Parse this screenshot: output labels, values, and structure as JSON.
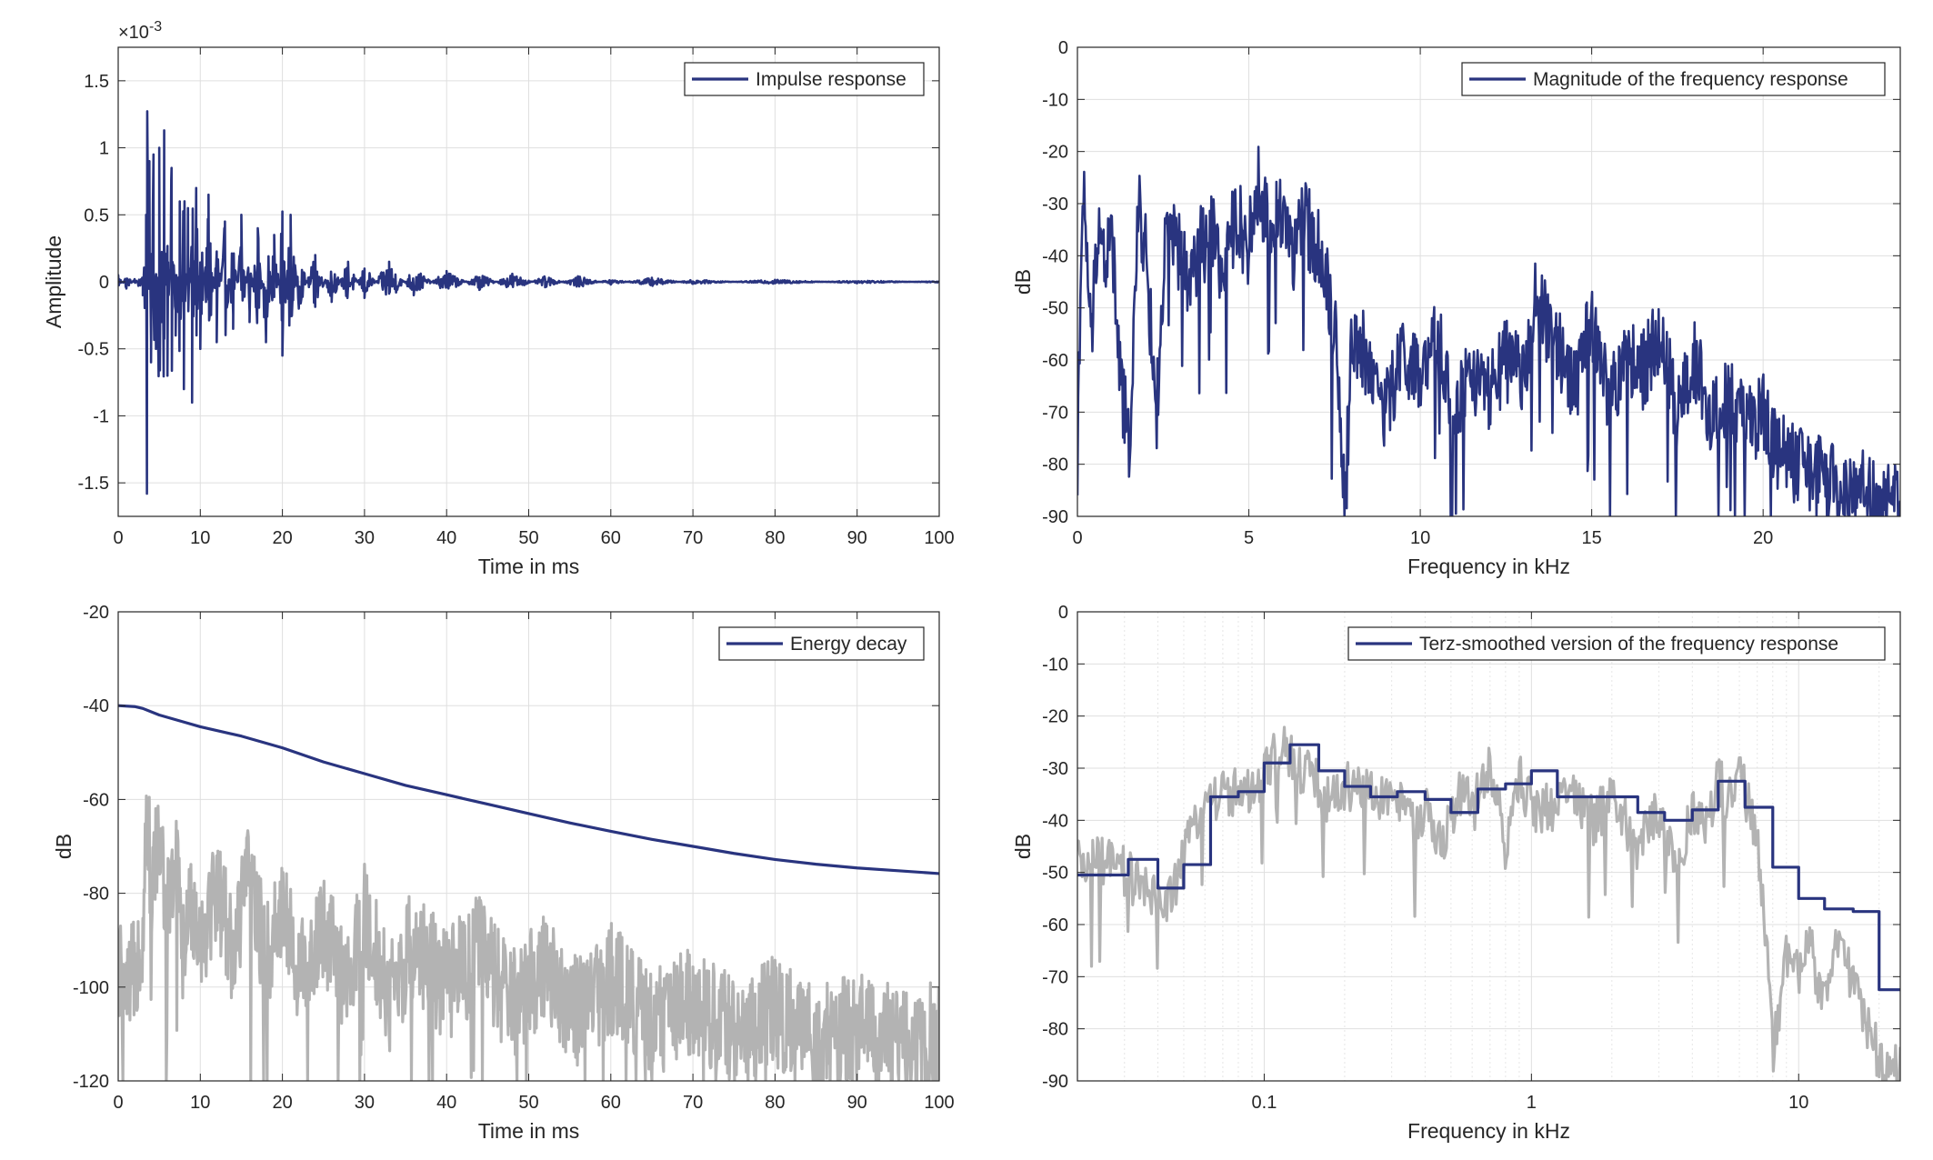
{
  "chart_data": [
    {
      "id": "impulse",
      "type": "line",
      "xlabel": "Time in ms",
      "ylabel": "Amplitude",
      "exponent_label": "×10",
      "exponent_power": "-3",
      "xlim": [
        0,
        100
      ],
      "ylim": [
        -1.75,
        1.75
      ],
      "xticks": [
        0,
        10,
        20,
        30,
        40,
        50,
        60,
        70,
        80,
        90,
        100
      ],
      "xtick_labels": [
        "0",
        "10",
        "20",
        "30",
        "40",
        "50",
        "60",
        "70",
        "80",
        "90",
        "100"
      ],
      "yticks": [
        -1.5,
        -1,
        -0.5,
        0,
        0.5,
        1,
        1.5
      ],
      "ytick_labels": [
        "-1.5",
        "-1",
        "-0.5",
        "0",
        "0.5",
        "1",
        "1.5"
      ],
      "grid": true,
      "legend_position": "top-right",
      "series": [
        {
          "name": "Impulse response",
          "color": "#29347f",
          "x": [
            0,
            1,
            2,
            3,
            3.4,
            3.5,
            3.8,
            4,
            4.3,
            4.6,
            5,
            5.3,
            5.6,
            6,
            6.5,
            7,
            7.5,
            8,
            8.5,
            9,
            9.5,
            10,
            11,
            12,
            13,
            14,
            15,
            16,
            17,
            18,
            19,
            20,
            21,
            22,
            24,
            26,
            28,
            30,
            33,
            36,
            40,
            44,
            48,
            52,
            56,
            60,
            65,
            70,
            80,
            90,
            100
          ],
          "y": [
            0.05,
            -0.05,
            0.02,
            -0.1,
            0.5,
            -1.58,
            0.9,
            -0.6,
            0.95,
            -0.5,
            1.0,
            -0.3,
            1.13,
            -0.7,
            0.85,
            -0.4,
            0.6,
            -0.8,
            0.55,
            -0.9,
            0.7,
            -0.5,
            0.65,
            -0.45,
            0.45,
            -0.35,
            0.5,
            -0.3,
            0.4,
            -0.45,
            0.35,
            -0.55,
            0.5,
            -0.2,
            0.2,
            -0.15,
            0.15,
            -0.12,
            0.15,
            -0.1,
            0.08,
            -0.06,
            0.06,
            -0.04,
            0.04,
            -0.02,
            0.03,
            -0.015,
            0.015,
            -0.01,
            0.005
          ]
        }
      ]
    },
    {
      "id": "magnitude",
      "type": "line",
      "xlabel": "Frequency in kHz",
      "ylabel": "dB",
      "xlim": [
        0,
        24
      ],
      "ylim": [
        -90,
        0
      ],
      "xticks": [
        0,
        5,
        10,
        15,
        20
      ],
      "xtick_labels": [
        "0",
        "5",
        "10",
        "15",
        "20"
      ],
      "yticks": [
        0,
        -10,
        -20,
        -30,
        -40,
        -50,
        -60,
        -70,
        -80,
        -90
      ],
      "ytick_labels": [
        "0",
        "-10",
        "-20",
        "-30",
        "-40",
        "-50",
        "-60",
        "-70",
        "-80",
        "-90"
      ],
      "grid": true,
      "legend_position": "top-right",
      "series": [
        {
          "name": "Magnitude of the frequency response",
          "color": "#29347f",
          "x": [
            0,
            0.2,
            0.4,
            0.6,
            0.8,
            1,
            1.2,
            1.5,
            1.8,
            2,
            2.3,
            2.6,
            3,
            3.3,
            3.6,
            4,
            4.3,
            4.6,
            5,
            5.3,
            5.6,
            6,
            6.3,
            6.6,
            7,
            7.3,
            7.6,
            7.8,
            8,
            8.5,
            9,
            9.5,
            10,
            10.5,
            11,
            11.5,
            12,
            12.5,
            13,
            13.3,
            13.6,
            14,
            14.5,
            15,
            15.5,
            16,
            16.5,
            17,
            17.5,
            18,
            18.5,
            19,
            19.5,
            20,
            20.5,
            21,
            21.5,
            22,
            22.5,
            23,
            23.5,
            24
          ],
          "y": [
            -66,
            -28,
            -58,
            -32,
            -42,
            -35,
            -60,
            -77,
            -30,
            -40,
            -71,
            -35,
            -40,
            -45,
            -38,
            -36,
            -45,
            -32,
            -38,
            -26,
            -36,
            -30,
            -40,
            -33,
            -38,
            -45,
            -60,
            -90,
            -55,
            -60,
            -70,
            -58,
            -65,
            -56,
            -70,
            -62,
            -67,
            -60,
            -64,
            -48,
            -52,
            -58,
            -65,
            -52,
            -68,
            -60,
            -62,
            -55,
            -70,
            -60,
            -72,
            -67,
            -73,
            -70,
            -78,
            -80,
            -82,
            -84,
            -86,
            -85,
            -87,
            -88
          ]
        }
      ]
    },
    {
      "id": "energy",
      "type": "line",
      "xlabel": "Time in ms",
      "ylabel": "dB",
      "xlim": [
        0,
        100
      ],
      "ylim": [
        -120,
        -20
      ],
      "xticks": [
        0,
        10,
        20,
        30,
        40,
        50,
        60,
        70,
        80,
        90,
        100
      ],
      "xtick_labels": [
        "0",
        "10",
        "20",
        "30",
        "40",
        "50",
        "60",
        "70",
        "80",
        "90",
        "100"
      ],
      "yticks": [
        -20,
        -40,
        -60,
        -80,
        -100,
        -120
      ],
      "ytick_labels": [
        "-20",
        "-40",
        "-60",
        "-80",
        "-100",
        "-120"
      ],
      "grid": true,
      "legend_position": "top-right",
      "series": [
        {
          "color": "#b3b3b3",
          "x": [
            0,
            1,
            2,
            3,
            3.5,
            4,
            5,
            6,
            7,
            8,
            9,
            10,
            12,
            14,
            16,
            18,
            20,
            22,
            25,
            28,
            30,
            33,
            36,
            40,
            44,
            48,
            52,
            56,
            60,
            65,
            70,
            75,
            80,
            85,
            90,
            95,
            100
          ],
          "y": [
            -95,
            -105,
            -95,
            -88,
            -60,
            -78,
            -68,
            -85,
            -72,
            -95,
            -80,
            -90,
            -78,
            -92,
            -75,
            -95,
            -82,
            -98,
            -88,
            -100,
            -85,
            -102,
            -90,
            -100,
            -92,
            -104,
            -95,
            -106,
            -98,
            -108,
            -102,
            -110,
            -105,
            -112,
            -108,
            -112,
            -110
          ]
        },
        {
          "name": "Energy decay",
          "color": "#29347f",
          "x": [
            0,
            2,
            3,
            5,
            8,
            10,
            15,
            20,
            25,
            30,
            35,
            40,
            45,
            50,
            55,
            60,
            65,
            70,
            75,
            80,
            85,
            90,
            95,
            100
          ],
          "y": [
            -40,
            -40.2,
            -40.6,
            -42,
            -43.5,
            -44.5,
            -46.5,
            -49,
            -52,
            -54.5,
            -57,
            -59,
            -61,
            -63,
            -65,
            -66.8,
            -68.5,
            -70,
            -71.5,
            -72.8,
            -73.8,
            -74.6,
            -75.2,
            -75.8
          ]
        }
      ]
    },
    {
      "id": "terz",
      "type": "line",
      "xscale": "log",
      "xlabel": "Frequency in kHz",
      "ylabel": "dB",
      "xlim": [
        0.02,
        24
      ],
      "ylim": [
        -90,
        0
      ],
      "xticks": [
        0.1,
        1,
        10
      ],
      "xtick_labels": [
        "0.1",
        "1",
        "10"
      ],
      "yticks": [
        0,
        -10,
        -20,
        -30,
        -40,
        -50,
        -60,
        -70,
        -80,
        -90
      ],
      "ytick_labels": [
        "0",
        "-10",
        "-20",
        "-30",
        "-40",
        "-50",
        "-60",
        "-70",
        "-80",
        "-90"
      ],
      "grid": true,
      "minor_grid": true,
      "legend_position": "top-right",
      "series": [
        {
          "color": "#b3b3b3",
          "x": [
            0.02,
            0.025,
            0.03,
            0.035,
            0.04,
            0.045,
            0.05,
            0.055,
            0.06,
            0.07,
            0.08,
            0.09,
            0.1,
            0.11,
            0.12,
            0.13,
            0.15,
            0.17,
            0.2,
            0.23,
            0.26,
            0.3,
            0.35,
            0.4,
            0.45,
            0.5,
            0.55,
            0.6,
            0.7,
            0.8,
            0.9,
            1,
            1.2,
            1.4,
            1.7,
            2,
            2.5,
            3,
            3.5,
            4,
            4.5,
            5,
            5.5,
            6,
            6.5,
            7,
            7.5,
            8,
            9,
            10,
            11,
            12,
            14,
            16,
            18,
            20,
            22,
            24
          ],
          "y": [
            -49,
            -48,
            -50,
            -53,
            -56,
            -54,
            -48,
            -40,
            -36,
            -35,
            -34,
            -36,
            -32,
            -27,
            -26,
            -30,
            -31,
            -36,
            -34,
            -33,
            -36,
            -35,
            -40,
            -38,
            -45,
            -40,
            -34,
            -38,
            -30,
            -45,
            -32,
            -37,
            -38,
            -34,
            -40,
            -36,
            -45,
            -38,
            -50,
            -38,
            -42,
            -32,
            -37,
            -30,
            -38,
            -45,
            -60,
            -85,
            -65,
            -70,
            -60,
            -75,
            -62,
            -72,
            -80,
            -85,
            -88,
            -86
          ]
        },
        {
          "name": "Terz-smoothed version of the frequency response",
          "color": "#29347f",
          "x": [
            0.02,
            0.031,
            0.031,
            0.04,
            0.04,
            0.05,
            0.05,
            0.063,
            0.063,
            0.08,
            0.08,
            0.1,
            0.1,
            0.125,
            0.125,
            0.16,
            0.16,
            0.2,
            0.2,
            0.25,
            0.25,
            0.315,
            0.315,
            0.4,
            0.4,
            0.5,
            0.5,
            0.63,
            0.63,
            0.8,
            0.8,
            1,
            1,
            1.25,
            1.25,
            1.6,
            1.6,
            2,
            2,
            2.5,
            2.5,
            3.15,
            3.15,
            4,
            4,
            5,
            5,
            6.3,
            6.3,
            8,
            8,
            10,
            10,
            12.5,
            12.5,
            16,
            16,
            20,
            20,
            24
          ],
          "y": [
            -50.5,
            -50.5,
            -47.5,
            -47.5,
            -53,
            -53,
            -48.5,
            -48.5,
            -35.5,
            -35.5,
            -34.5,
            -34.5,
            -29,
            -29,
            -25.5,
            -25.5,
            -30.5,
            -30.5,
            -33.5,
            -33.5,
            -35.5,
            -35.5,
            -34.5,
            -34.5,
            -36,
            -36,
            -38.5,
            -38.5,
            -34,
            -34,
            -33,
            -33,
            -30.5,
            -30.5,
            -35.5,
            -35.5,
            -35.5,
            -35.5,
            -35.5,
            -35.5,
            -38.5,
            -38.5,
            -40,
            -40,
            -38,
            -38,
            -32.5,
            -32.5,
            -37.5,
            -37.5,
            -49,
            -49,
            -55,
            -55,
            -57,
            -57,
            -57.5,
            -57.5,
            -72.5,
            -72.5
          ]
        }
      ]
    }
  ]
}
